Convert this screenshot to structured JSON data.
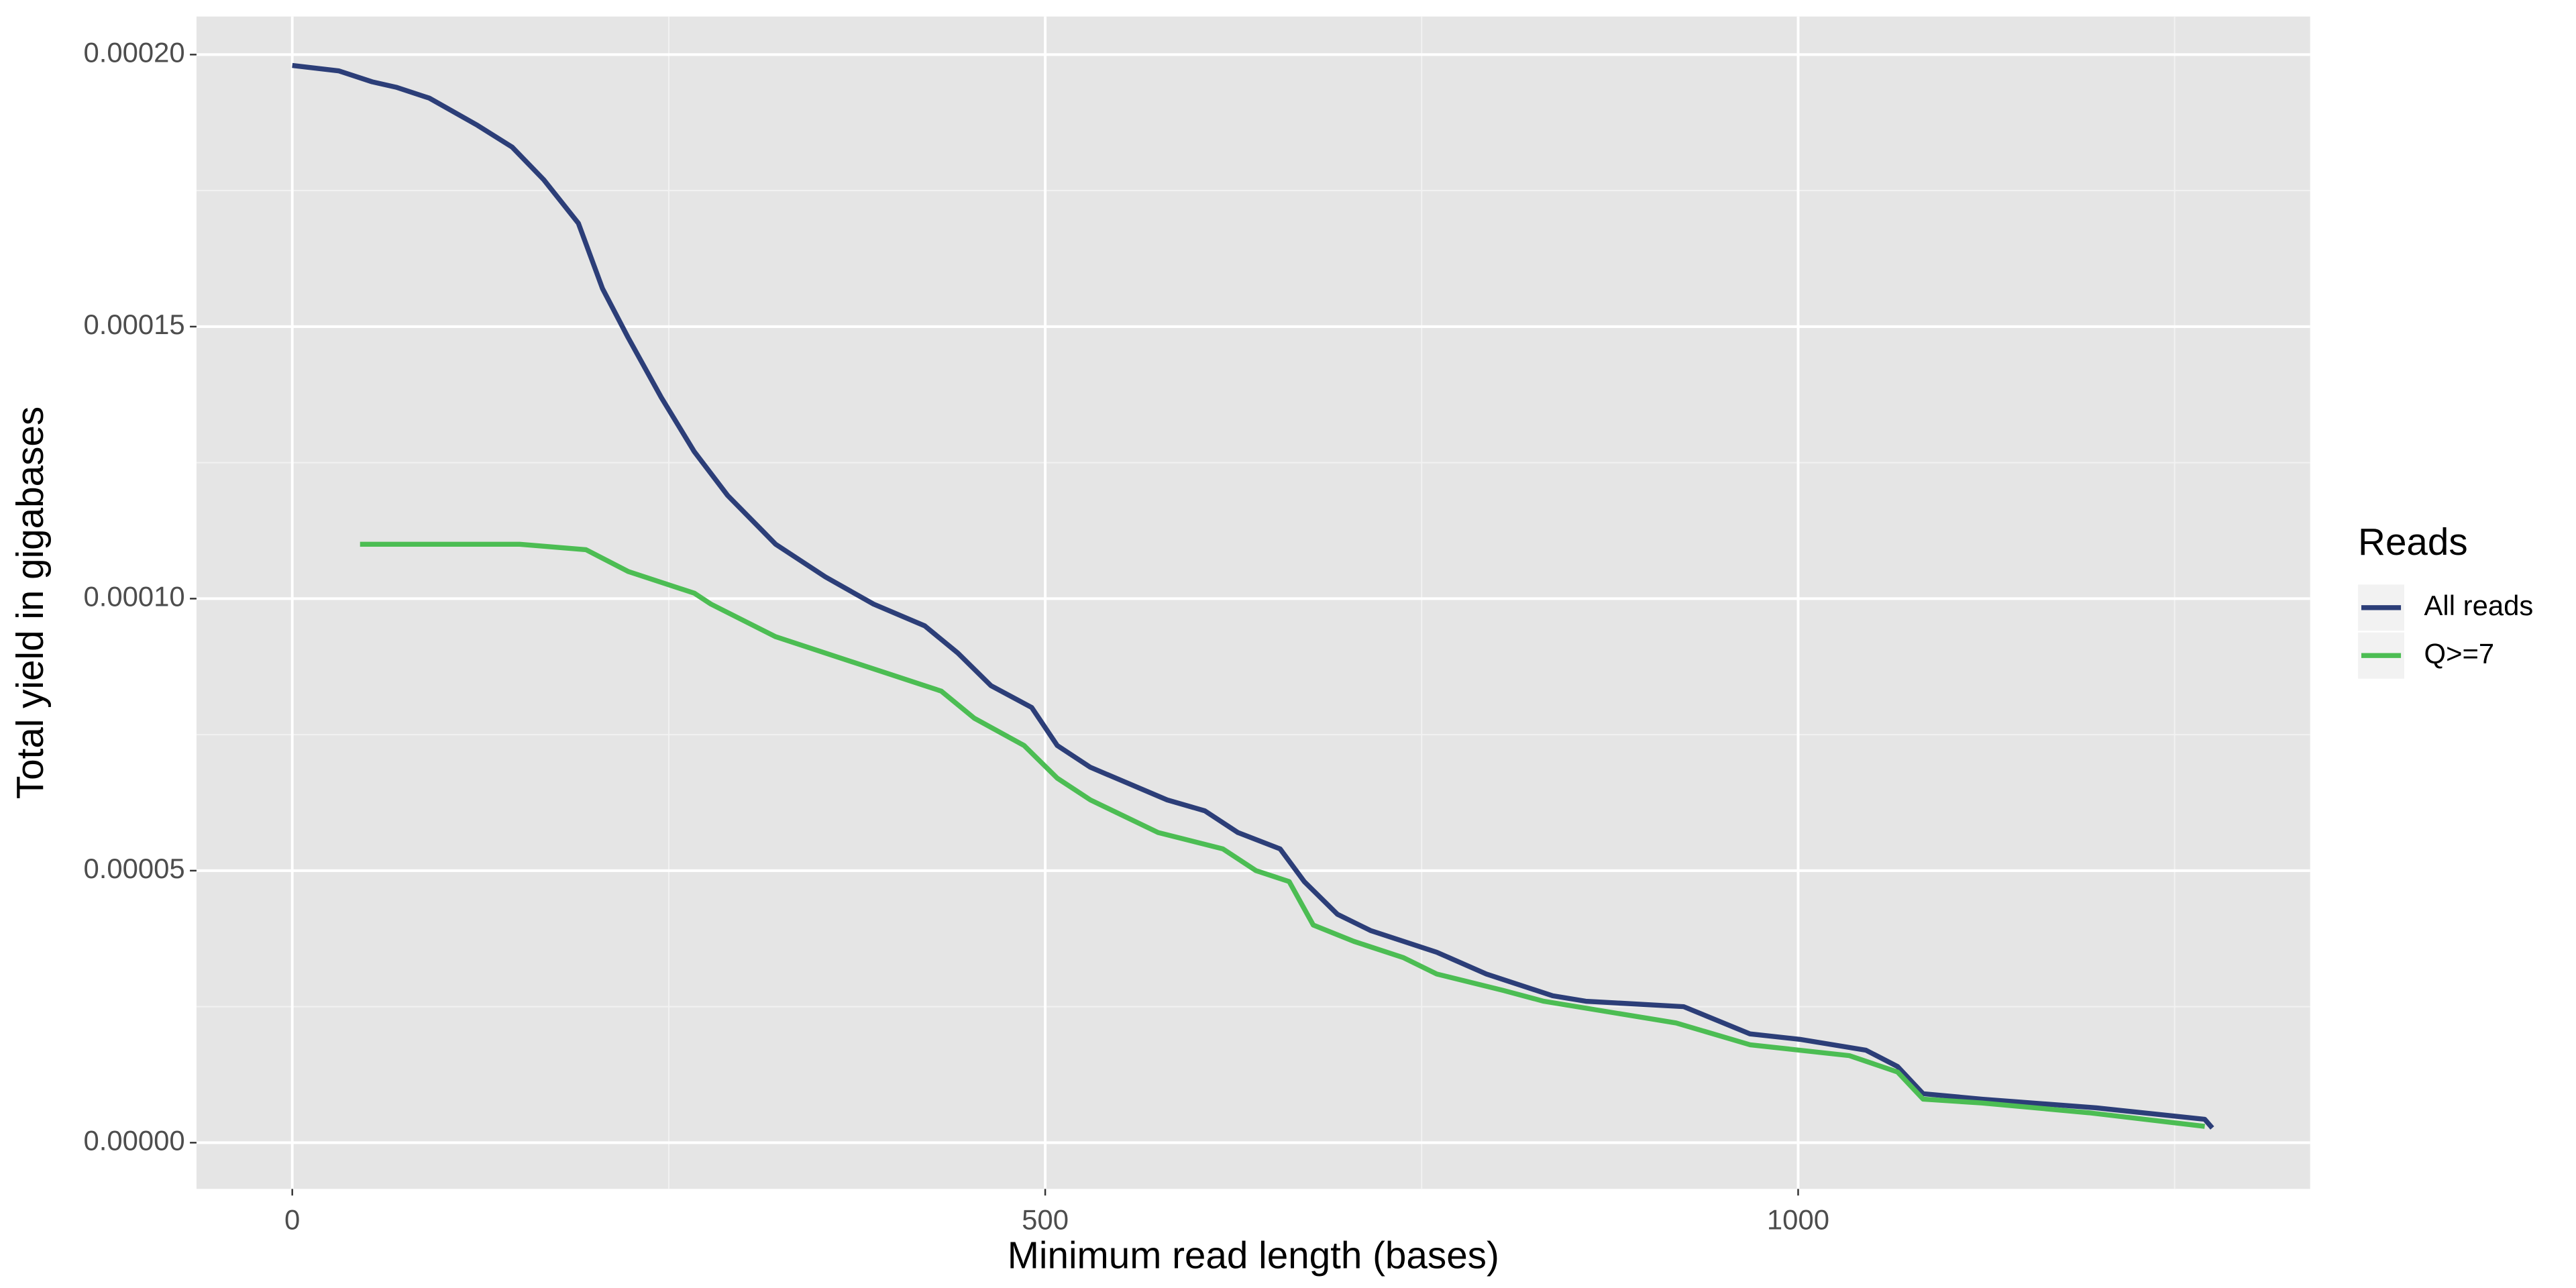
{
  "chart_data": {
    "type": "line",
    "x_label": "Minimum read length (bases)",
    "y_label": "Total yield in gigabases",
    "legend_title": "Reads",
    "legend_position": "right",
    "grid": true,
    "background": "#e5e5e5",
    "xlim": [
      -63.6,
      1340
    ],
    "ylim": [
      -8.5e-06,
      0.000207
    ],
    "xticks": [
      0,
      500,
      1000
    ],
    "x_minor_grid": [
      250,
      750,
      1250
    ],
    "yticks": [
      {
        "value": 0,
        "label": "0.00000"
      },
      {
        "value": 5e-05,
        "label": "0.00005"
      },
      {
        "value": 0.0001,
        "label": "0.00010"
      },
      {
        "value": 0.00015,
        "label": "0.00015"
      },
      {
        "value": 0.0002,
        "label": "0.00020"
      }
    ],
    "y_minor_grid": [
      2.5e-05,
      7.5e-05,
      0.000125,
      0.000175
    ],
    "series": [
      {
        "name": "All reads",
        "color": "#2c3e78",
        "x": [
          0,
          31,
          53,
          69,
          91,
          123,
          146,
          167,
          190,
          206,
          223,
          245,
          267,
          289,
          321,
          354,
          386,
          420,
          442,
          464,
          491,
          508,
          530,
          581,
          606,
          628,
          656,
          672,
          694,
          716,
          760,
          793,
          837,
          859,
          924,
          968,
          1001,
          1045,
          1066,
          1083,
          1122,
          1198,
          1270,
          1275
        ],
        "values": [
          0.000198,
          0.000197,
          0.000195,
          0.000194,
          0.000192,
          0.000187,
          0.000183,
          0.000177,
          0.000169,
          0.000157,
          0.000148,
          0.000137,
          0.000127,
          0.000119,
          0.00011,
          0.000104,
          9.9e-05,
          9.5e-05,
          9e-05,
          8.4e-05,
          8e-05,
          7.3e-05,
          6.9e-05,
          6.3e-05,
          6.1e-05,
          5.7e-05,
          5.4e-05,
          4.8e-05,
          4.2e-05,
          3.9e-05,
          3.5e-05,
          3.1e-05,
          2.7e-05,
          2.6e-05,
          2.5e-05,
          2e-05,
          1.9e-05,
          1.7e-05,
          1.4e-05,
          9e-06,
          8e-06,
          6.4e-06,
          4.3e-06,
          2.7e-06
        ]
      },
      {
        "name": "Q>=7",
        "color": "#4cbd53",
        "x": [
          45,
          151,
          195,
          223,
          267,
          278,
          321,
          354,
          398,
          431,
          453,
          486,
          508,
          530,
          575,
          618,
          640,
          662,
          678,
          705,
          738,
          760,
          804,
          831,
          919,
          968,
          1034,
          1066,
          1083,
          1122,
          1193,
          1270
        ],
        "values": [
          0.00011,
          0.00011,
          0.000109,
          0.000105,
          0.000101,
          9.9e-05,
          9.3e-05,
          9e-05,
          8.6e-05,
          8.3e-05,
          7.8e-05,
          7.3e-05,
          6.7e-05,
          6.3e-05,
          5.7e-05,
          5.4e-05,
          5e-05,
          4.8e-05,
          4e-05,
          3.7e-05,
          3.4e-05,
          3.1e-05,
          2.8e-05,
          2.6e-05,
          2.2e-05,
          1.8e-05,
          1.6e-05,
          1.3e-05,
          8e-06,
          7.3e-06,
          5.5e-06,
          3e-06
        ]
      }
    ]
  }
}
